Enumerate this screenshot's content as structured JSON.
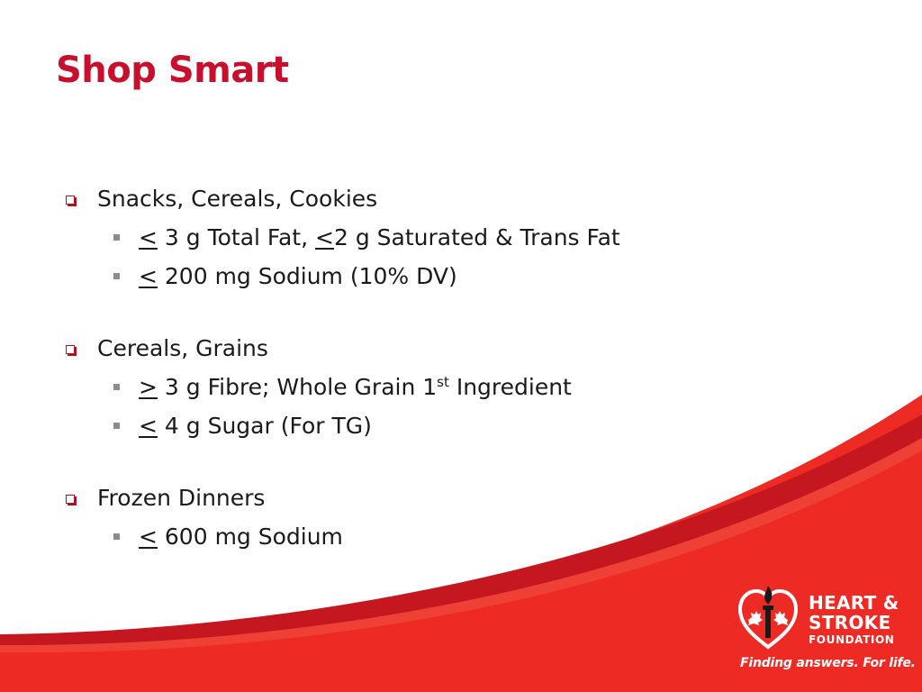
{
  "slide": {
    "title": "Shop Smart",
    "sections": [
      {
        "heading": "Snacks, Cereals, Cookies",
        "items": [
          {
            "symbol": "<",
            "text": " 3 g Total Fat, ",
            "symbol2": "<",
            "text2": "2 g Saturated & Trans Fat"
          },
          {
            "symbol": "<",
            "text": " 200 mg Sodium (10% DV)"
          }
        ]
      },
      {
        "heading": "Cereals, Grains",
        "items": [
          {
            "symbol": ">",
            "text": " 3 g Fibre; Whole Grain 1",
            "sup": "st",
            "text2": " Ingredient"
          },
          {
            "symbol": "<",
            "text": " 4 g Sugar (For TG)"
          }
        ]
      },
      {
        "heading": "Frozen Dinners",
        "items": [
          {
            "symbol": "<",
            "text": " 600 mg Sodium"
          }
        ]
      }
    ]
  },
  "logo": {
    "line1": "HEART &",
    "line2": "STROKE",
    "line3": "FOUNDATION",
    "tagline": "Finding answers. For life."
  },
  "colors": {
    "title": "#c8102e",
    "swoosh": "#ee2a24",
    "swoosh_dark": "#c41720",
    "bullet_box": "#b0121f",
    "bullet_square": "#8c8c8c"
  },
  "icons": {
    "level1_bullet": "hollow-square-bullet-icon",
    "level2_bullet": "filled-square-bullet-icon",
    "logo": "heart-torch-maple-leaf-logo"
  }
}
